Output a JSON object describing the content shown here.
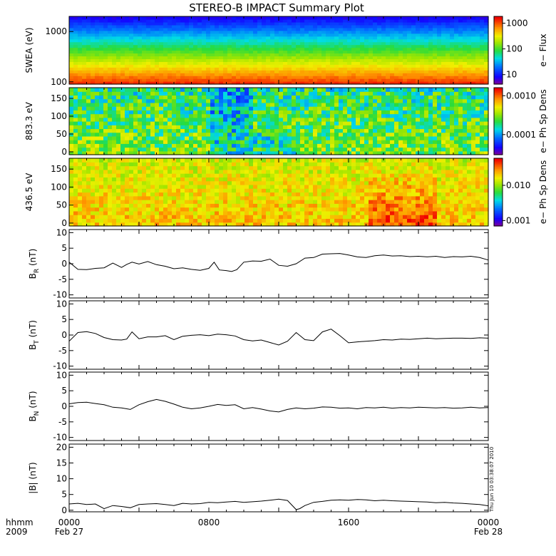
{
  "chart_data": {
    "title": "STEREO-B IMPACT Summary Plot",
    "x_axis": {
      "row1_label": "hhmm",
      "row2_label": "2009",
      "ticks": [
        {
          "hours": 0,
          "time": "0000",
          "date": "Feb 27"
        },
        {
          "hours": 8,
          "time": "0800",
          "date": ""
        },
        {
          "hours": 16,
          "time": "1600",
          "date": ""
        },
        {
          "hours": 24,
          "time": "0000",
          "date": "Feb 28"
        }
      ],
      "range_hours": [
        0,
        24
      ]
    },
    "timestamp": "Thu Jun 10 03:38:07 2010",
    "spectrograms": [
      {
        "type": "heatmap",
        "ylabel": "SWEA (eV)",
        "yscale": "log",
        "ylim": [
          90,
          2000
        ],
        "yticks": [
          {
            "v": 100,
            "label": "100"
          },
          {
            "v": 1000,
            "label": "1000"
          }
        ],
        "colorbar_label": "e− Flux",
        "colorbar_ticks": [
          {
            "label": "10",
            "frac": 0.14
          },
          {
            "label": "100",
            "frac": 0.52
          },
          {
            "label": "1000",
            "frac": 0.9
          }
        ],
        "profile": "swea"
      },
      {
        "type": "heatmap",
        "ylabel": "883.3 eV",
        "yscale": "linear",
        "ylim": [
          -8,
          180
        ],
        "yticks": [
          {
            "v": 0,
            "label": "0"
          },
          {
            "v": 50,
            "label": "50"
          },
          {
            "v": 100,
            "label": "100"
          },
          {
            "v": 150,
            "label": "150"
          }
        ],
        "colorbar_label": "e− Ph Sp Dens",
        "colorbar_ticks": [
          {
            "label": "0.0001",
            "frac": 0.3
          },
          {
            "label": "0.0010",
            "frac": 0.88
          }
        ],
        "profile": "pad883"
      },
      {
        "type": "heatmap",
        "ylabel": "436.5 eV",
        "yscale": "linear",
        "ylim": [
          -8,
          180
        ],
        "yticks": [
          {
            "v": 0,
            "label": "0"
          },
          {
            "v": 50,
            "label": "50"
          },
          {
            "v": 100,
            "label": "100"
          },
          {
            "v": 150,
            "label": "150"
          }
        ],
        "colorbar_label": "e− Ph Sp Dens",
        "colorbar_ticks": [
          {
            "label": "0.001",
            "frac": 0.08
          },
          {
            "label": "0.010",
            "frac": 0.6
          }
        ],
        "profile": "pad436"
      }
    ],
    "line_panels": [
      {
        "type": "line",
        "ylabel": "B_R (nT)",
        "ylabel_main": "B",
        "ylabel_sub": "R",
        "ylabel_unit": " (nT)",
        "ylim": [
          -11,
          11
        ],
        "yticks": [
          -10,
          -5,
          0,
          5,
          10
        ],
        "x": [
          0,
          0.5,
          1,
          1.5,
          2,
          2.5,
          3,
          3.3,
          3.6,
          4,
          4.5,
          5,
          5.5,
          6,
          6.5,
          7,
          7.5,
          8,
          8.3,
          8.6,
          9,
          9.3,
          9.6,
          10,
          10.5,
          11,
          11.5,
          12,
          12.5,
          13,
          13.5,
          14,
          14.5,
          15,
          15.5,
          16,
          16.5,
          17,
          17.5,
          18,
          18.5,
          19,
          19.5,
          20,
          20.5,
          21,
          21.5,
          22,
          22.5,
          23,
          23.5,
          24
        ],
        "values": [
          0.5,
          -1.8,
          -1.9,
          -1.5,
          -1.3,
          0.2,
          -1.2,
          -0.2,
          0.5,
          -0.1,
          0.7,
          -0.3,
          -0.8,
          -1.6,
          -1.3,
          -1.8,
          -2.1,
          -1.5,
          0.5,
          -2.0,
          -2.2,
          -2.5,
          -1.9,
          0.5,
          0.9,
          0.8,
          1.5,
          -0.5,
          -0.8,
          0.0,
          1.8,
          2.0,
          3.1,
          3.2,
          3.3,
          2.8,
          2.2,
          2.0,
          2.6,
          2.8,
          2.5,
          2.6,
          2.3,
          2.4,
          2.2,
          2.4,
          2.0,
          2.3,
          2.2,
          2.4,
          2.0,
          1.2
        ]
      },
      {
        "type": "line",
        "ylabel": "B_T (nT)",
        "ylabel_main": "B",
        "ylabel_sub": "T",
        "ylabel_unit": " (nT)",
        "ylim": [
          -11,
          11
        ],
        "yticks": [
          -10,
          -5,
          0,
          5,
          10
        ],
        "x": [
          0,
          0.5,
          1,
          1.5,
          2,
          2.5,
          3,
          3.3,
          3.6,
          4,
          4.5,
          5,
          5.5,
          6,
          6.5,
          7,
          7.5,
          8,
          8.5,
          9,
          9.5,
          10,
          10.5,
          11,
          11.5,
          12,
          12.5,
          13,
          13.5,
          14,
          14.5,
          15,
          15.5,
          16,
          16.5,
          17,
          17.5,
          18,
          18.5,
          19,
          19.5,
          20,
          20.5,
          21,
          21.5,
          22,
          22.5,
          23,
          23.5,
          24
        ],
        "values": [
          -2.0,
          0.8,
          1.1,
          0.5,
          -0.8,
          -1.5,
          -1.6,
          -1.3,
          1.0,
          -1.2,
          -0.6,
          -0.6,
          -0.2,
          -1.5,
          -0.4,
          -0.1,
          0.1,
          -0.2,
          0.3,
          0.1,
          -0.3,
          -1.5,
          -1.9,
          -1.6,
          -2.4,
          -3.2,
          -2.0,
          0.8,
          -1.5,
          -1.8,
          1.0,
          1.9,
          -0.2,
          -2.5,
          -2.2,
          -2.0,
          -1.8,
          -1.5,
          -1.6,
          -1.3,
          -1.4,
          -1.2,
          -1.0,
          -1.2,
          -1.1,
          -1.0,
          -1.0,
          -1.1,
          -0.9,
          -1.0
        ]
      },
      {
        "type": "line",
        "ylabel": "B_N (nT)",
        "ylabel_main": "B",
        "ylabel_sub": "N",
        "ylabel_unit": " (nT)",
        "ylim": [
          -11,
          11
        ],
        "yticks": [
          -10,
          -5,
          0,
          5,
          10
        ],
        "x": [
          0,
          0.5,
          1,
          1.5,
          2,
          2.5,
          3,
          3.5,
          4,
          4.5,
          5,
          5.5,
          6,
          6.5,
          7,
          7.5,
          8,
          8.5,
          9,
          9.5,
          10,
          10.5,
          11,
          11.5,
          12,
          12.5,
          13,
          13.5,
          14,
          14.5,
          15,
          15.5,
          16,
          16.5,
          17,
          17.5,
          18,
          18.5,
          19,
          19.5,
          20,
          20.5,
          21,
          21.5,
          22,
          22.5,
          23,
          23.5,
          24
        ],
        "values": [
          0.8,
          1.2,
          1.3,
          0.9,
          0.5,
          -0.3,
          -0.5,
          -1.0,
          0.5,
          1.5,
          2.2,
          1.6,
          0.7,
          -0.3,
          -0.8,
          -0.5,
          0.0,
          0.6,
          0.3,
          0.5,
          -0.8,
          -0.4,
          -0.9,
          -1.5,
          -1.8,
          -1.0,
          -0.5,
          -0.8,
          -0.6,
          -0.2,
          -0.3,
          -0.6,
          -0.5,
          -0.8,
          -0.4,
          -0.5,
          -0.3,
          -0.6,
          -0.4,
          -0.5,
          -0.3,
          -0.4,
          -0.5,
          -0.4,
          -0.6,
          -0.5,
          -0.3,
          -0.5,
          -0.4
        ]
      },
      {
        "type": "line",
        "ylabel": "|B| (nT)",
        "ylabel_main": "|B|",
        "ylabel_sub": "",
        "ylabel_unit": " (nT)",
        "ylim": [
          -0.5,
          21
        ],
        "yticks": [
          0,
          5,
          10,
          15,
          20
        ],
        "x": [
          0,
          0.5,
          1,
          1.5,
          2,
          2.5,
          3,
          3.5,
          4,
          4.5,
          5,
          5.5,
          6,
          6.5,
          7,
          7.5,
          8,
          8.5,
          9,
          9.5,
          10,
          10.5,
          11,
          11.5,
          12,
          12.5,
          13,
          13.2,
          13.5,
          14,
          14.5,
          15,
          15.5,
          16,
          16.5,
          17,
          17.5,
          18,
          18.5,
          19,
          19.5,
          20,
          20.5,
          21,
          21.5,
          22,
          22.5,
          23,
          23.5,
          24
        ],
        "values": [
          2.0,
          2.2,
          1.8,
          2.0,
          0.5,
          1.5,
          1.2,
          0.8,
          1.8,
          2.0,
          2.1,
          1.8,
          1.5,
          2.2,
          2.0,
          2.1,
          2.5,
          2.4,
          2.6,
          2.8,
          2.5,
          2.7,
          2.9,
          3.2,
          3.5,
          3.1,
          0.2,
          0.5,
          1.5,
          2.5,
          2.8,
          3.2,
          3.3,
          3.2,
          3.4,
          3.3,
          3.0,
          3.2,
          3.0,
          2.9,
          2.8,
          2.7,
          2.6,
          2.4,
          2.5,
          2.3,
          2.2,
          2.0,
          1.8,
          1.4
        ]
      }
    ]
  }
}
